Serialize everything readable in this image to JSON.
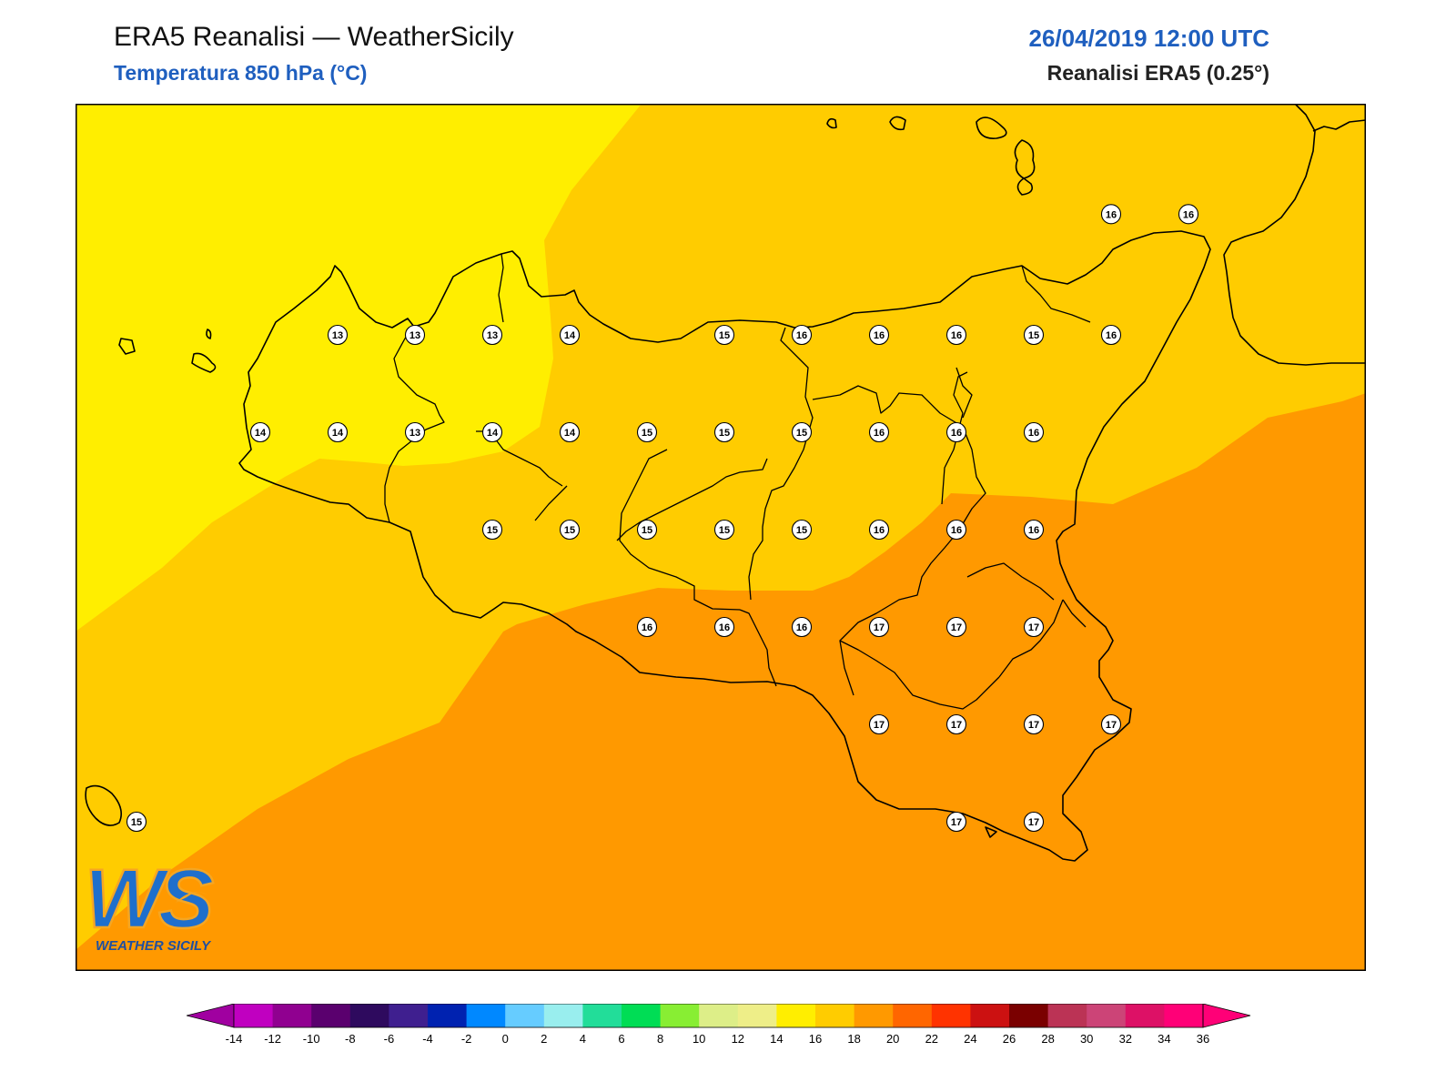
{
  "header": {
    "title": "ERA5 Reanalisi — WeatherSicily",
    "subtitle": "Temperatura 850 hPa (°C)",
    "datetime": "26/04/2019 12:00 UTC",
    "source": "Reanalisi ERA5 (0.25°)"
  },
  "logo": {
    "initials": "WS",
    "name": "WEATHER SICILY"
  },
  "colors": {
    "band_12_14": "#ffee00",
    "band_14_16": "#ffcc00",
    "band_16_18": "#ff9900",
    "coast": "#000000",
    "accent_blue": "#1f5fbf"
  },
  "colorbar": {
    "ticks": [
      "-14",
      "-12",
      "-10",
      "-8",
      "-6",
      "-4",
      "-2",
      "0",
      "2",
      "4",
      "6",
      "8",
      "10",
      "12",
      "14",
      "16",
      "18",
      "20",
      "22",
      "24",
      "26",
      "28",
      "30",
      "32",
      "34",
      "36"
    ],
    "colors": [
      "#c000c0",
      "#900090",
      "#5a006e",
      "#2e0a5e",
      "#3f1f8f",
      "#0022b0",
      "#0088ff",
      "#66ccff",
      "#99eeee",
      "#22dd99",
      "#00dd55",
      "#88ee33",
      "#ddee88",
      "#eeee88",
      "#ffee00",
      "#ffcc00",
      "#ff9900",
      "#ff6600",
      "#ff3300",
      "#cc1111",
      "#7a0000",
      "#bb3355",
      "#cc4477",
      "#dd1166",
      "#ff0077"
    ],
    "extend_low_color": "#a000a0",
    "extend_high_color": "#ff0077"
  },
  "station_values": [
    {
      "lon": 12.5,
      "lat": 38.0,
      "v": "13"
    },
    {
      "lon": 13.0,
      "lat": 38.0,
      "v": "13"
    },
    {
      "lon": 13.5,
      "lat": 38.0,
      "v": "13"
    },
    {
      "lon": 14.0,
      "lat": 38.0,
      "v": "14"
    },
    {
      "lon": 15.0,
      "lat": 38.0,
      "v": "15"
    },
    {
      "lon": 15.5,
      "lat": 38.0,
      "v": "16"
    },
    {
      "lon": 16.0,
      "lat": 38.0,
      "v": "16"
    },
    {
      "lon": 16.5,
      "lat": 38.0,
      "v": "16"
    },
    {
      "lon": 17.0,
      "lat": 38.0,
      "v": "15"
    },
    {
      "lon": 17.5,
      "lat": 38.0,
      "v": "16"
    },
    {
      "lon": 17.5,
      "lat": 38.62,
      "v": "16"
    },
    {
      "lon": 18.0,
      "lat": 38.62,
      "v": "16"
    },
    {
      "lon": 12.0,
      "lat": 37.5,
      "v": "14"
    },
    {
      "lon": 12.5,
      "lat": 37.5,
      "v": "14"
    },
    {
      "lon": 13.0,
      "lat": 37.5,
      "v": "13"
    },
    {
      "lon": 13.5,
      "lat": 37.5,
      "v": "14"
    },
    {
      "lon": 14.0,
      "lat": 37.5,
      "v": "14"
    },
    {
      "lon": 14.5,
      "lat": 37.5,
      "v": "15"
    },
    {
      "lon": 15.0,
      "lat": 37.5,
      "v": "15"
    },
    {
      "lon": 15.5,
      "lat": 37.5,
      "v": "15"
    },
    {
      "lon": 16.0,
      "lat": 37.5,
      "v": "16"
    },
    {
      "lon": 16.5,
      "lat": 37.5,
      "v": "16"
    },
    {
      "lon": 17.0,
      "lat": 37.5,
      "v": "16"
    },
    {
      "lon": 13.5,
      "lat": 37.0,
      "v": "15"
    },
    {
      "lon": 14.0,
      "lat": 37.0,
      "v": "15"
    },
    {
      "lon": 14.5,
      "lat": 37.0,
      "v": "15"
    },
    {
      "lon": 15.0,
      "lat": 37.0,
      "v": "15"
    },
    {
      "lon": 15.5,
      "lat": 37.0,
      "v": "15"
    },
    {
      "lon": 16.0,
      "lat": 37.0,
      "v": "16"
    },
    {
      "lon": 16.5,
      "lat": 37.0,
      "v": "16"
    },
    {
      "lon": 17.0,
      "lat": 37.0,
      "v": "16"
    },
    {
      "lon": 14.5,
      "lat": 36.5,
      "v": "16"
    },
    {
      "lon": 15.0,
      "lat": 36.5,
      "v": "16"
    },
    {
      "lon": 15.5,
      "lat": 36.5,
      "v": "16"
    },
    {
      "lon": 16.0,
      "lat": 36.5,
      "v": "17"
    },
    {
      "lon": 16.5,
      "lat": 36.5,
      "v": "17"
    },
    {
      "lon": 17.0,
      "lat": 36.5,
      "v": "17"
    },
    {
      "lon": 16.0,
      "lat": 36.0,
      "v": "17"
    },
    {
      "lon": 16.5,
      "lat": 36.0,
      "v": "17"
    },
    {
      "lon": 17.0,
      "lat": 36.0,
      "v": "17"
    },
    {
      "lon": 17.5,
      "lat": 36.0,
      "v": "17"
    },
    {
      "lon": 16.5,
      "lat": 35.5,
      "v": "17"
    },
    {
      "lon": 17.0,
      "lat": 35.5,
      "v": "17"
    },
    {
      "lon": 11.2,
      "lat": 35.5,
      "v": "15"
    }
  ]
}
